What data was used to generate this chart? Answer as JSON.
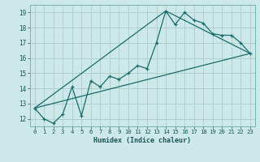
{
  "xlabel": "Humidex (Indice chaleur)",
  "background_color": "#cce8e8",
  "grid_color": "#b0d0d0",
  "line_color": "#1a6b6b",
  "xlim": [
    -0.5,
    23.5
  ],
  "ylim": [
    11.5,
    19.5
  ],
  "xticks": [
    0,
    1,
    2,
    3,
    4,
    5,
    6,
    7,
    8,
    9,
    10,
    11,
    12,
    13,
    14,
    15,
    16,
    17,
    18,
    19,
    20,
    21,
    22,
    23
  ],
  "yticks": [
    12,
    13,
    14,
    15,
    16,
    17,
    18,
    19
  ],
  "series1_x": [
    0,
    1,
    2,
    3,
    4,
    5,
    6,
    7,
    8,
    9,
    10,
    11,
    12,
    13,
    14,
    15,
    16,
    17,
    18,
    19,
    20,
    21,
    22,
    23
  ],
  "series1_y": [
    12.7,
    12.0,
    11.7,
    12.3,
    14.1,
    12.2,
    14.5,
    14.1,
    14.8,
    14.6,
    15.0,
    15.5,
    15.3,
    17.0,
    19.1,
    18.2,
    19.0,
    18.5,
    18.3,
    17.6,
    17.5,
    17.5,
    17.0,
    16.3
  ],
  "series2_x": [
    0,
    23
  ],
  "series2_y": [
    12.7,
    16.3
  ],
  "series3_x": [
    0,
    14,
    23
  ],
  "series3_y": [
    12.7,
    19.1,
    16.3
  ]
}
